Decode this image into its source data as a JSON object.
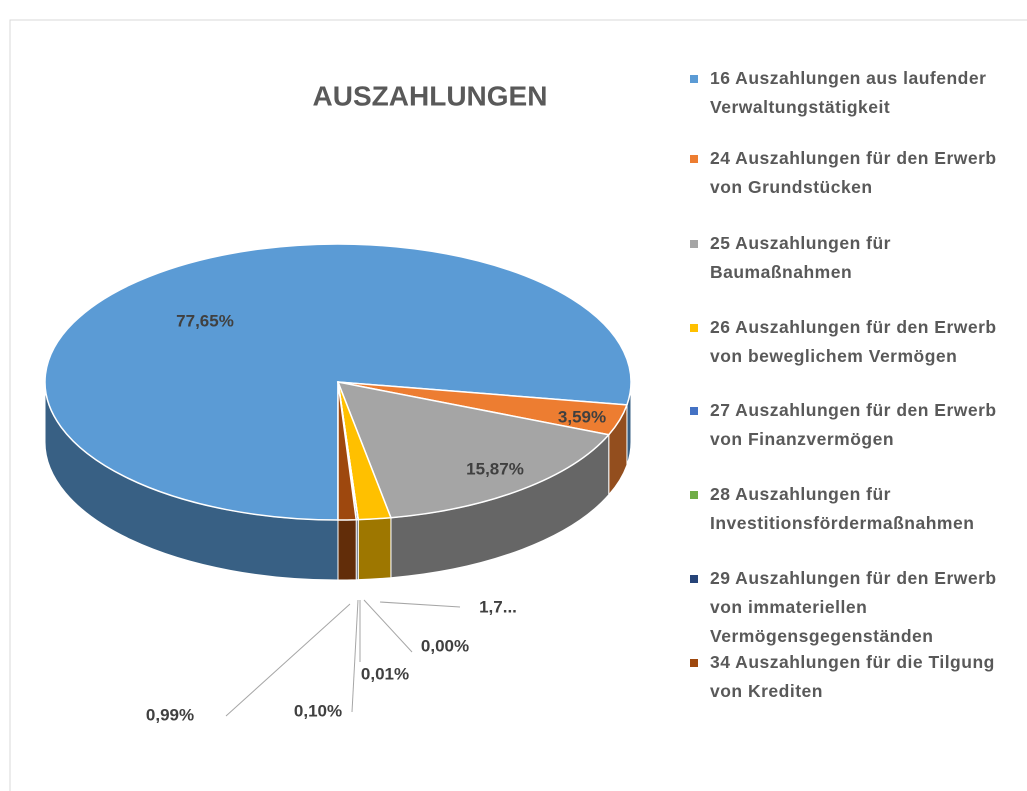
{
  "chart_data": {
    "type": "pie3d",
    "title": "AUSZAHLUNGEN",
    "categories": [
      "16 Auszahlungen aus laufender Verwaltungstätigkeit",
      "24 Auszahlungen für den Erwerb von Grundstücken",
      "25 Auszahlungen für Baumaßnahmen",
      "26 Auszahlungen für den Erwerb von beweglichem Vermögen",
      "27 Auszahlungen für den Erwerb von Finanzvermögen",
      "28 Auszahlungen für Investitionsfördermaßnahmen",
      "29 Auszahlungen für den Erwerb von immateriellen Vermögensgegenständen",
      "34 Auszahlungen für die Tilgung von Krediten"
    ],
    "values": [
      77.65,
      3.59,
      15.87,
      1.79,
      0.0,
      0.01,
      0.1,
      0.99
    ],
    "value_labels": [
      "77,65%",
      "3,59%",
      "15,87%",
      "1,7...",
      "0,00%",
      "0,01%",
      "0,10%",
      "0,99%"
    ],
    "colors": [
      "#5b9bd5",
      "#ed7d31",
      "#a5a5a5",
      "#ffc000",
      "#4472c4",
      "#70ad47",
      "#264478",
      "#9e480e"
    ],
    "legend": "right"
  }
}
